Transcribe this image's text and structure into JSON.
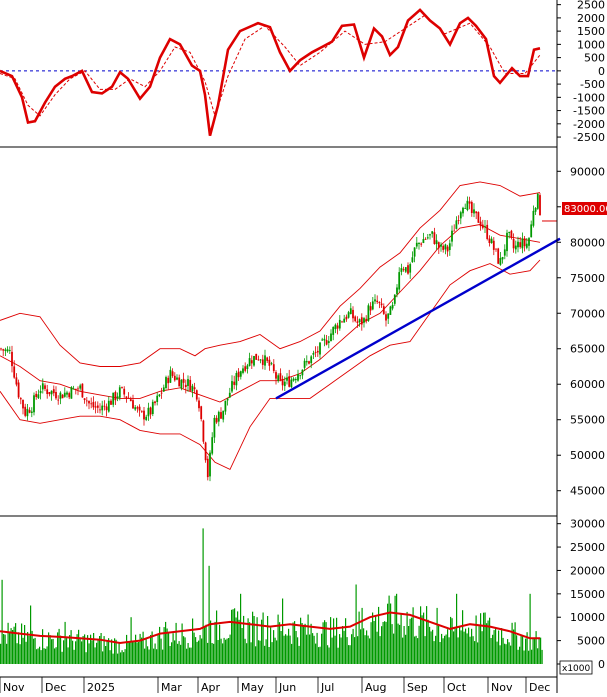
{
  "colors": {
    "macd": "#dd0000",
    "signal": "#dd0000",
    "zero_line": "#0000cc",
    "bollinger": "#dd0000",
    "candle_up": "#009900",
    "candle_down": "#dd0000",
    "trendline": "#0000cc",
    "volume_bar": "#009900",
    "volume_ma": "#dd0000",
    "price_tag_bg": "#dd0000",
    "price_tag_text": "#ffffff"
  },
  "chart_data": [
    {
      "type": "line",
      "panel": "oscillator",
      "ylim": [
        -2800,
        2600
      ],
      "y_ticks": [
        "2500",
        "2000",
        "1500",
        "1000",
        "500",
        "0",
        "-500",
        "-1000",
        "-1500",
        "-2000",
        "-2500"
      ],
      "zero_line": 0,
      "x_months": [
        "Nov",
        "Dec",
        "2025",
        "Mar",
        "Apr",
        "May",
        "Jun",
        "Jul",
        "Aug",
        "Sep",
        "Oct",
        "Nov",
        "Dec"
      ],
      "series": [
        {
          "style": "solid",
          "points": [
            [
              0,
              0
            ],
            [
              12,
              -200
            ],
            [
              22,
              -1000
            ],
            [
              28,
              -1950
            ],
            [
              35,
              -1900
            ],
            [
              45,
              -1200
            ],
            [
              55,
              -600
            ],
            [
              65,
              -300
            ],
            [
              72,
              -200
            ],
            [
              82,
              0
            ],
            [
              92,
              -800
            ],
            [
              102,
              -850
            ],
            [
              112,
              -600
            ],
            [
              120,
              -50
            ],
            [
              128,
              -300
            ],
            [
              140,
              -1050
            ],
            [
              150,
              -600
            ],
            [
              160,
              500
            ],
            [
              170,
              1200
            ],
            [
              180,
              1000
            ],
            [
              192,
              200
            ],
            [
              200,
              0
            ],
            [
              205,
              -900
            ],
            [
              210,
              -2450
            ],
            [
              218,
              -1300
            ],
            [
              228,
              800
            ],
            [
              240,
              1500
            ],
            [
              258,
              1800
            ],
            [
              270,
              1650
            ],
            [
              280,
              700
            ],
            [
              290,
              0
            ],
            [
              300,
              400
            ],
            [
              312,
              700
            ],
            [
              322,
              900
            ],
            [
              332,
              1100
            ],
            [
              342,
              1700
            ],
            [
              354,
              1750
            ],
            [
              364,
              500
            ],
            [
              374,
              1600
            ],
            [
              382,
              1300
            ],
            [
              390,
              600
            ],
            [
              398,
              900
            ],
            [
              408,
              1900
            ],
            [
              420,
              2300
            ],
            [
              430,
              1900
            ],
            [
              440,
              1600
            ],
            [
              450,
              1000
            ],
            [
              460,
              1800
            ],
            [
              468,
              2000
            ],
            [
              476,
              1700
            ],
            [
              486,
              1200
            ],
            [
              494,
              -200
            ],
            [
              500,
              -450
            ],
            [
              512,
              100
            ],
            [
              520,
              -200
            ],
            [
              528,
              -200
            ],
            [
              534,
              800
            ],
            [
              540,
              850
            ]
          ]
        },
        {
          "style": "dashed",
          "points": [
            [
              0,
              -100
            ],
            [
              15,
              -300
            ],
            [
              28,
              -1300
            ],
            [
              40,
              -1700
            ],
            [
              55,
              -900
            ],
            [
              70,
              -300
            ],
            [
              85,
              0
            ],
            [
              100,
              -700
            ],
            [
              115,
              -700
            ],
            [
              130,
              -300
            ],
            [
              145,
              -600
            ],
            [
              160,
              0
            ],
            [
              175,
              900
            ],
            [
              190,
              700
            ],
            [
              205,
              -400
            ],
            [
              215,
              -1700
            ],
            [
              228,
              -200
            ],
            [
              245,
              1200
            ],
            [
              265,
              1700
            ],
            [
              285,
              900
            ],
            [
              300,
              200
            ],
            [
              320,
              700
            ],
            [
              345,
              1500
            ],
            [
              365,
              1000
            ],
            [
              385,
              1100
            ],
            [
              405,
              1600
            ],
            [
              425,
              2100
            ],
            [
              445,
              1400
            ],
            [
              470,
              1800
            ],
            [
              490,
              900
            ],
            [
              505,
              -100
            ],
            [
              525,
              -100
            ],
            [
              540,
              600
            ]
          ]
        }
      ]
    },
    {
      "type": "candlestick",
      "panel": "price",
      "ylim": [
        42000,
        93000
      ],
      "y_ticks": [
        "90000",
        "85000",
        "80000",
        "75000",
        "70000",
        "65000",
        "60000",
        "55000",
        "50000",
        "45000"
      ],
      "last_price_label": "83000.00",
      "last_price": 83000,
      "x_months": [
        "Nov",
        "Dec",
        "2025",
        "Mar",
        "Apr",
        "May",
        "Jun",
        "Jul",
        "Aug",
        "Sep",
        "Oct",
        "Nov",
        "Dec"
      ],
      "close_path": [
        [
          0,
          65000
        ],
        [
          10,
          64500
        ],
        [
          18,
          59000
        ],
        [
          25,
          56000
        ],
        [
          32,
          57000
        ],
        [
          40,
          59500
        ],
        [
          50,
          59000
        ],
        [
          60,
          58500
        ],
        [
          70,
          59000
        ],
        [
          80,
          59500
        ],
        [
          90,
          57000
        ],
        [
          100,
          56500
        ],
        [
          110,
          57500
        ],
        [
          120,
          59000
        ],
        [
          130,
          58000
        ],
        [
          140,
          55500
        ],
        [
          150,
          56000
        ],
        [
          160,
          58500
        ],
        [
          170,
          61500
        ],
        [
          180,
          60500
        ],
        [
          190,
          60000
        ],
        [
          198,
          58500
        ],
        [
          204,
          52000
        ],
        [
          208,
          47000
        ],
        [
          214,
          55000
        ],
        [
          222,
          56000
        ],
        [
          230,
          59000
        ],
        [
          240,
          62000
        ],
        [
          250,
          63500
        ],
        [
          260,
          64000
        ],
        [
          270,
          62500
        ],
        [
          280,
          60000
        ],
        [
          290,
          60500
        ],
        [
          300,
          62000
        ],
        [
          310,
          63500
        ],
        [
          320,
          65000
        ],
        [
          330,
          67000
        ],
        [
          340,
          69000
        ],
        [
          350,
          70000
        ],
        [
          358,
          68500
        ],
        [
          364,
          69000
        ],
        [
          370,
          71000
        ],
        [
          378,
          71500
        ],
        [
          386,
          69000
        ],
        [
          394,
          71000
        ],
        [
          400,
          77000
        ],
        [
          408,
          76000
        ],
        [
          416,
          79500
        ],
        [
          424,
          80500
        ],
        [
          432,
          81000
        ],
        [
          440,
          79000
        ],
        [
          448,
          79000
        ],
        [
          456,
          83000
        ],
        [
          464,
          86000
        ],
        [
          472,
          84000
        ],
        [
          480,
          83000
        ],
        [
          488,
          81000
        ],
        [
          494,
          79000
        ],
        [
          500,
          77000
        ],
        [
          508,
          81000
        ],
        [
          514,
          79000
        ],
        [
          520,
          80000
        ],
        [
          526,
          79500
        ],
        [
          530,
          81000
        ],
        [
          534,
          85500
        ],
        [
          538,
          86000
        ],
        [
          542,
          83000
        ]
      ],
      "bollinger_upper": [
        [
          0,
          69000
        ],
        [
          20,
          70000
        ],
        [
          40,
          69500
        ],
        [
          60,
          65500
        ],
        [
          80,
          63000
        ],
        [
          100,
          62500
        ],
        [
          120,
          62500
        ],
        [
          140,
          63000
        ],
        [
          160,
          65000
        ],
        [
          180,
          65000
        ],
        [
          195,
          64000
        ],
        [
          205,
          65000
        ],
        [
          220,
          65500
        ],
        [
          240,
          66000
        ],
        [
          260,
          67000
        ],
        [
          280,
          65000
        ],
        [
          300,
          66000
        ],
        [
          320,
          67500
        ],
        [
          340,
          71000
        ],
        [
          360,
          73500
        ],
        [
          380,
          76500
        ],
        [
          400,
          78500
        ],
        [
          420,
          82000
        ],
        [
          440,
          84500
        ],
        [
          460,
          88000
        ],
        [
          480,
          88500
        ],
        [
          500,
          88000
        ],
        [
          520,
          86500
        ],
        [
          540,
          87000
        ]
      ],
      "bollinger_middle": [
        [
          0,
          64000
        ],
        [
          20,
          62500
        ],
        [
          40,
          60500
        ],
        [
          60,
          60000
        ],
        [
          80,
          59000
        ],
        [
          100,
          58500
        ],
        [
          120,
          58000
        ],
        [
          140,
          58000
        ],
        [
          160,
          59000
        ],
        [
          180,
          59500
        ],
        [
          200,
          58500
        ],
        [
          220,
          57500
        ],
        [
          240,
          59000
        ],
        [
          260,
          60500
        ],
        [
          280,
          60500
        ],
        [
          300,
          61500
        ],
        [
          320,
          63500
        ],
        [
          340,
          66000
        ],
        [
          360,
          68500
        ],
        [
          380,
          70000
        ],
        [
          400,
          73000
        ],
        [
          420,
          76000
        ],
        [
          440,
          79500
        ],
        [
          460,
          82000
        ],
        [
          480,
          82500
        ],
        [
          500,
          81000
        ],
        [
          520,
          80500
        ],
        [
          540,
          80000
        ]
      ],
      "bollinger_lower": [
        [
          0,
          59000
        ],
        [
          20,
          55000
        ],
        [
          40,
          54500
        ],
        [
          60,
          55000
        ],
        [
          80,
          55500
        ],
        [
          100,
          55500
        ],
        [
          120,
          55000
        ],
        [
          140,
          53500
        ],
        [
          160,
          53000
        ],
        [
          180,
          53000
        ],
        [
          200,
          51500
        ],
        [
          215,
          49000
        ],
        [
          230,
          48000
        ],
        [
          250,
          54000
        ],
        [
          270,
          58000
        ],
        [
          290,
          58000
        ],
        [
          310,
          58000
        ],
        [
          330,
          60000
        ],
        [
          350,
          62000
        ],
        [
          370,
          64000
        ],
        [
          390,
          65500
        ],
        [
          410,
          66000
        ],
        [
          430,
          70000
        ],
        [
          450,
          74000
        ],
        [
          470,
          76000
        ],
        [
          490,
          77000
        ],
        [
          510,
          75500
        ],
        [
          530,
          76000
        ],
        [
          540,
          77500
        ]
      ],
      "trendline": [
        [
          276,
          58000
        ],
        [
          560,
          80500
        ]
      ]
    },
    {
      "type": "bar",
      "panel": "volume",
      "ylim": [
        0,
        31000
      ],
      "y_ticks": [
        "30000",
        "25000",
        "20000",
        "15000",
        "10000",
        "5000",
        "0"
      ],
      "unit_label": "x1000",
      "x_months": [
        "Nov",
        "Dec",
        "2025",
        "Mar",
        "Apr",
        "May",
        "Jun",
        "Jul",
        "Aug",
        "Sep",
        "Oct",
        "Nov",
        "Dec"
      ],
      "volume_ma": [
        [
          0,
          7000
        ],
        [
          20,
          6500
        ],
        [
          40,
          6000
        ],
        [
          60,
          5800
        ],
        [
          80,
          5500
        ],
        [
          100,
          5200
        ],
        [
          120,
          4500
        ],
        [
          140,
          5000
        ],
        [
          160,
          6500
        ],
        [
          180,
          7000
        ],
        [
          200,
          7500
        ],
        [
          210,
          8500
        ],
        [
          230,
          9000
        ],
        [
          250,
          8500
        ],
        [
          270,
          8000
        ],
        [
          290,
          8500
        ],
        [
          310,
          8000
        ],
        [
          330,
          7500
        ],
        [
          350,
          8000
        ],
        [
          370,
          10000
        ],
        [
          390,
          11000
        ],
        [
          410,
          10500
        ],
        [
          430,
          9000
        ],
        [
          450,
          7500
        ],
        [
          470,
          8500
        ],
        [
          490,
          8000
        ],
        [
          510,
          7000
        ],
        [
          530,
          5500
        ],
        [
          540,
          5500
        ]
      ],
      "spikes": [
        [
          2,
          18000
        ],
        [
          30,
          12500
        ],
        [
          65,
          9000
        ],
        [
          130,
          10000
        ],
        [
          165,
          9000
        ],
        [
          203,
          29000
        ],
        [
          209,
          21000
        ],
        [
          215,
          9000
        ],
        [
          240,
          15000
        ],
        [
          262,
          11000
        ],
        [
          282,
          14000
        ],
        [
          356,
          17000
        ],
        [
          362,
          12000
        ],
        [
          372,
          11000
        ],
        [
          386,
          9000
        ],
        [
          396,
          15000
        ],
        [
          436,
          12000
        ],
        [
          456,
          15000
        ],
        [
          462,
          11500
        ],
        [
          484,
          11000
        ],
        [
          529,
          15000
        ]
      ]
    }
  ]
}
